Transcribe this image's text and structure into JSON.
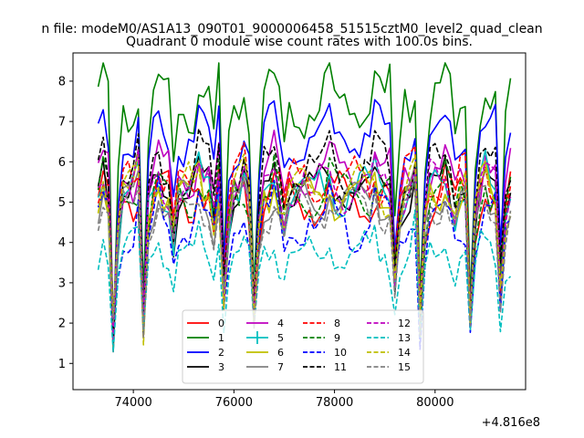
{
  "chart_data": {
    "type": "line",
    "suptitle": "n file: modeM0/AS1A13_090T01_9000006458_51515cztM0_level2_quad_clean",
    "title": "Quadrant 0 module wise count rates with 100.0s bins.",
    "xlabel": "",
    "ylabel": "",
    "x_offset_label": "+4.816e8",
    "xlim": [
      72800,
      81800
    ],
    "ylim": [
      0.35,
      8.7
    ],
    "xticks": [
      74000,
      76000,
      78000,
      80000
    ],
    "xtick_labels": [
      "74000",
      "76000",
      "78000",
      "80000"
    ],
    "yticks": [
      1,
      2,
      3,
      4,
      5,
      6,
      7,
      8
    ],
    "ytick_labels": [
      "1",
      "2",
      "3",
      "4",
      "5",
      "6",
      "7",
      "8"
    ],
    "x_start": 73300,
    "x_step": 100,
    "legend_position": "lower-center",
    "series": [
      {
        "name": "0",
        "color": "#ff0000",
        "dash": "solid",
        "base": 5.1,
        "amp": 0.55,
        "ph": 0.3,
        "n": 0.25,
        "s": 11
      },
      {
        "name": "1",
        "color": "#008000",
        "dash": "solid",
        "base": 7.5,
        "amp": 0.6,
        "ph": 1.1,
        "n": 0.35,
        "s": 23
      },
      {
        "name": "2",
        "color": "#0000ff",
        "dash": "solid",
        "base": 6.6,
        "amp": 0.55,
        "ph": 2.0,
        "n": 0.3,
        "s": 37
      },
      {
        "name": "3",
        "color": "#000000",
        "dash": "solid",
        "base": 5.3,
        "amp": 0.5,
        "ph": 2.7,
        "n": 0.25,
        "s": 41
      },
      {
        "name": "4",
        "color": "#bf00bf",
        "dash": "solid",
        "base": 5.7,
        "amp": 0.5,
        "ph": 0.9,
        "n": 0.25,
        "s": 53
      },
      {
        "name": "5",
        "color": "#00bfbf",
        "dash": "solid",
        "base": 5.3,
        "amp": 0.45,
        "ph": 3.3,
        "n": 0.25,
        "s": 67
      },
      {
        "name": "6",
        "color": "#bfbf00",
        "dash": "solid",
        "base": 5.2,
        "amp": 0.45,
        "ph": 4.0,
        "n": 0.25,
        "s": 71
      },
      {
        "name": "7",
        "color": "#808080",
        "dash": "solid",
        "base": 5.0,
        "amp": 0.45,
        "ph": 4.7,
        "n": 0.2,
        "s": 83
      },
      {
        "name": "8",
        "color": "#ff0000",
        "dash": "dashed",
        "base": 5.5,
        "amp": 0.5,
        "ph": 5.3,
        "n": 0.25,
        "s": 97
      },
      {
        "name": "9",
        "color": "#008000",
        "dash": "dashed",
        "base": 5.2,
        "amp": 0.45,
        "ph": 0.5,
        "n": 0.25,
        "s": 101
      },
      {
        "name": "10",
        "color": "#0000ff",
        "dash": "dashed",
        "base": 4.5,
        "amp": 0.5,
        "ph": 1.6,
        "n": 0.3,
        "s": 113
      },
      {
        "name": "11",
        "color": "#000000",
        "dash": "dashed",
        "base": 5.8,
        "amp": 0.55,
        "ph": 2.4,
        "n": 0.3,
        "s": 127
      },
      {
        "name": "12",
        "color": "#bf00bf",
        "dash": "dashed",
        "base": 5.4,
        "amp": 0.45,
        "ph": 3.0,
        "n": 0.25,
        "s": 131
      },
      {
        "name": "13",
        "color": "#00bfbf",
        "dash": "dashed",
        "base": 3.7,
        "amp": 0.45,
        "ph": 3.8,
        "n": 0.25,
        "s": 139
      },
      {
        "name": "14",
        "color": "#bfbf00",
        "dash": "dashed",
        "base": 5.3,
        "amp": 0.5,
        "ph": 4.4,
        "n": 0.25,
        "s": 149
      },
      {
        "name": "15",
        "color": "#808080",
        "dash": "dashed",
        "base": 4.8,
        "amp": 0.45,
        "ph": 5.0,
        "n": 0.2,
        "s": 157
      }
    ],
    "dips": [
      {
        "x": 73600,
        "depth": 0.85
      },
      {
        "x": 73700,
        "depth": 0.3
      },
      {
        "x": 74200,
        "depth": 0.78
      },
      {
        "x": 74300,
        "depth": 0.15
      },
      {
        "x": 74800,
        "depth": 0.25
      },
      {
        "x": 75600,
        "depth": 0.18
      },
      {
        "x": 75800,
        "depth": 0.6
      },
      {
        "x": 75900,
        "depth": 0.2
      },
      {
        "x": 76400,
        "depth": 0.68
      },
      {
        "x": 76500,
        "depth": 0.22
      },
      {
        "x": 77000,
        "depth": 0.15
      },
      {
        "x": 79200,
        "depth": 0.5
      },
      {
        "x": 79300,
        "depth": 0.15
      },
      {
        "x": 79700,
        "depth": 0.78
      },
      {
        "x": 79800,
        "depth": 0.2
      },
      {
        "x": 80400,
        "depth": 0.12
      },
      {
        "x": 80700,
        "depth": 0.72
      },
      {
        "x": 80800,
        "depth": 0.2
      },
      {
        "x": 81300,
        "depth": 0.62
      },
      {
        "x": 81400,
        "depth": 0.15
      }
    ],
    "peaks": [
      73400,
      73700,
      74100,
      74500,
      75300,
      75700,
      76200,
      76800,
      77900,
      78800,
      79600,
      80200,
      81000,
      81300
    ]
  }
}
